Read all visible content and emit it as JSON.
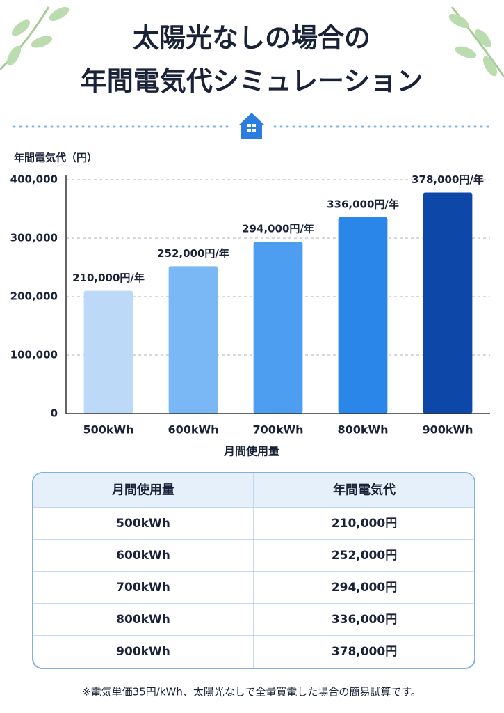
{
  "chart_data": {
    "type": "bar",
    "title": [
      "太陽光なしの場合の",
      "年間電気代シミュレーション"
    ],
    "y_label": "年間電気代（円）",
    "x_label": "月間使用量",
    "categories": [
      "500kWh",
      "600kWh",
      "700kWh",
      "800kWh",
      "900kWh"
    ],
    "values": [
      210000,
      252000,
      294000,
      336000,
      378000
    ],
    "value_labels": [
      "210,000円/年",
      "252,000円/年",
      "294,000円/年",
      "336,000円/年",
      "378,000円/年"
    ],
    "colors": [
      "#bcdaf8",
      "#7ab8f5",
      "#4d9ef0",
      "#2b86ea",
      "#0d47a8"
    ],
    "ylim": [
      0,
      400000
    ],
    "yticks": [
      0,
      {
        "value": 100000,
        "label": "100,000"
      },
      {
        "value": 200000,
        "label": "200,000"
      },
      {
        "value": 300000,
        "label": "300,000"
      },
      {
        "value": 400000,
        "label": "400,000"
      }
    ],
    "grid": true
  },
  "table": {
    "header": [
      "月間使用量",
      "年間電気代"
    ],
    "rows": [
      [
        "500kWh",
        "210,000円"
      ],
      [
        "600kWh",
        "252,000円"
      ],
      [
        "700kWh",
        "294,000円"
      ],
      [
        "800kWh",
        "336,000円"
      ],
      [
        "900kWh",
        "378,000円"
      ]
    ]
  },
  "note": "※電気単価35円/kWh、太陽光なしで全量買電した場合の簡易試算です。"
}
